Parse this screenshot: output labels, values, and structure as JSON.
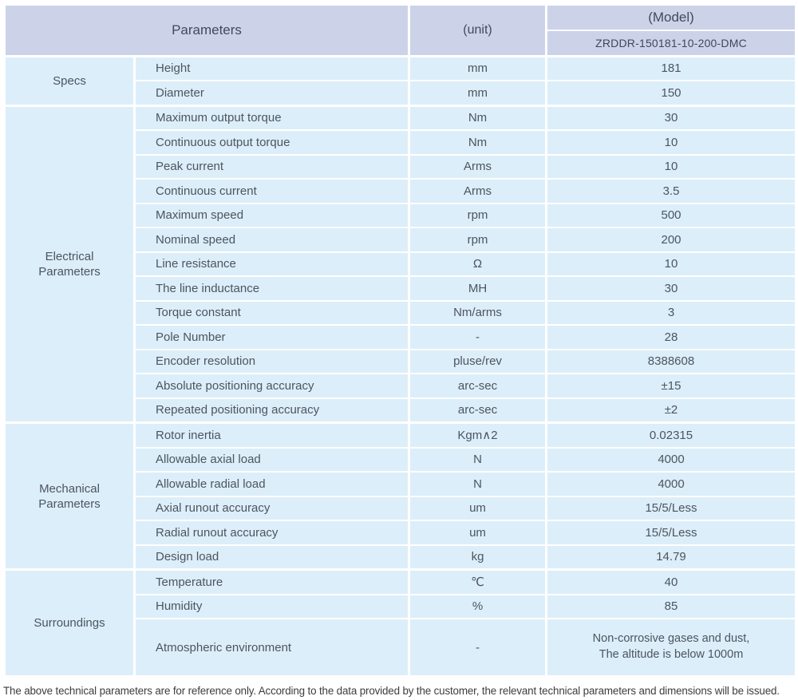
{
  "header": {
    "parameters_label": "Parameters",
    "unit_label": "(unit)",
    "model_label": "(Model)",
    "model_value": "ZRDDR-150181-10-200-DMC"
  },
  "sections": [
    {
      "category": "Specs",
      "rows": [
        {
          "name": "Height",
          "unit": "mm",
          "value": "181"
        },
        {
          "name": "Diameter",
          "unit": "mm",
          "value": "150"
        }
      ]
    },
    {
      "category": "Electrical Parameters",
      "rows": [
        {
          "name": "Maximum output torque",
          "unit": "Nm",
          "value": "30"
        },
        {
          "name": "Continuous output torque",
          "unit": "Nm",
          "value": "10"
        },
        {
          "name": "Peak current",
          "unit": "Arms",
          "value": "10"
        },
        {
          "name": "Continuous current",
          "unit": "Arms",
          "value": "3.5"
        },
        {
          "name": "Maximum speed",
          "unit": "rpm",
          "value": "500"
        },
        {
          "name": "Nominal speed",
          "unit": "rpm",
          "value": "200"
        },
        {
          "name": "Line resistance",
          "unit": "Ω",
          "value": "10"
        },
        {
          "name": "The line inductance",
          "unit": "MH",
          "value": "30"
        },
        {
          "name": "Torque constant",
          "unit": "Nm/arms",
          "value": "3"
        },
        {
          "name": "Pole Number",
          "unit": "-",
          "value": "28"
        },
        {
          "name": "Encoder resolution",
          "unit": "pluse/rev",
          "value": "8388608"
        },
        {
          "name": "Absolute positioning accuracy",
          "unit": "arc-sec",
          "value": "±15"
        },
        {
          "name": "Repeated positioning accuracy",
          "unit": "arc-sec",
          "value": "±2"
        }
      ]
    },
    {
      "category": "Mechanical Parameters",
      "rows": [
        {
          "name": "Rotor inertia",
          "unit": "Kgm∧2",
          "value": "0.02315"
        },
        {
          "name": "Allowable axial load",
          "unit": "N",
          "value": "4000"
        },
        {
          "name": "Allowable radial load",
          "unit": "N",
          "value": "4000"
        },
        {
          "name": "Axial runout accuracy",
          "unit": "um",
          "value": "15/5/Less"
        },
        {
          "name": "Radial runout accuracy",
          "unit": "um",
          "value": "15/5/Less"
        },
        {
          "name": "Design load",
          "unit": "kg",
          "value": "14.79"
        }
      ]
    },
    {
      "category": "Surroundings",
      "rows": [
        {
          "name": "Temperature",
          "unit": "℃",
          "value": "40"
        },
        {
          "name": "Humidity",
          "unit": "%",
          "value": "85"
        },
        {
          "name": "Atmospheric environment",
          "unit": "-",
          "value": "Non-corrosive gases and dust,\nThe altitude is below 1000m",
          "tall": true,
          "multiline": true
        }
      ]
    }
  ],
  "footer": {
    "note": "The above technical parameters are for reference only. According to the data provided by the customer, the relevant technical parameters and dimensions will be issued."
  },
  "colors": {
    "header_bg": "#ccd3e9",
    "body_bg": "#dceef9",
    "divider": "#ffffff",
    "header_text": "#414b5c",
    "body_text": "#4c5560",
    "footer_text": "#3d3d3d"
  }
}
